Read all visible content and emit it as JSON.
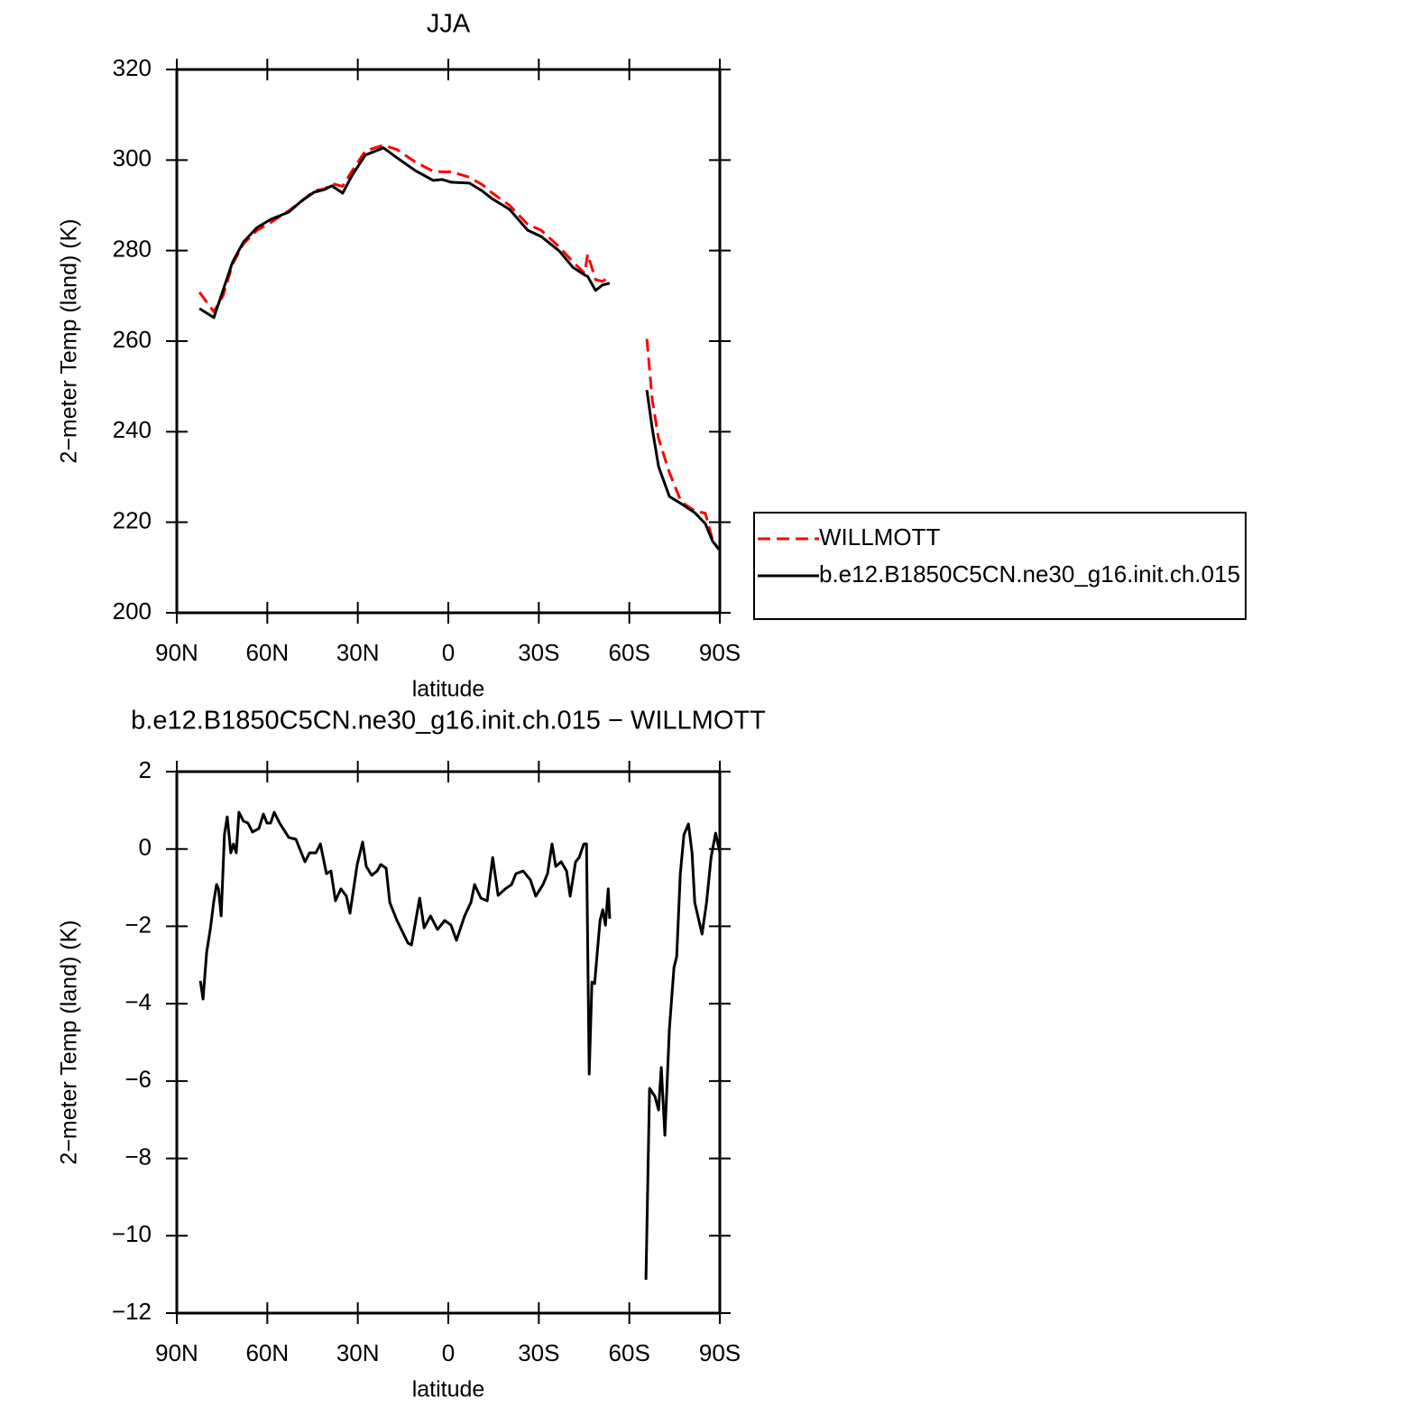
{
  "chart_data": [
    {
      "type": "line",
      "title": "JJA",
      "xlabel": "latitude",
      "ylabel": "2−meter Temp (land) (K)",
      "x": [
        82.5,
        77.7,
        74.7,
        71.5,
        67.9,
        63.4,
        58.9,
        52.9,
        48.4,
        44.5,
        41,
        38.6,
        35,
        32,
        27.5,
        21.5,
        17,
        11,
        5,
        2,
        -1,
        -7,
        -11.4,
        -14.4,
        -20.3,
        -26.3,
        -30.8,
        -36.8,
        -41.3,
        -45.2,
        -46.2,
        -48.8,
        -51.1,
        -53.5,
        -60,
        -65.8,
        -67.6,
        -69.7,
        -73.3,
        -77.2,
        -81.7,
        -85.2,
        -87.6,
        -89.7
      ],
      "series": [
        {
          "name": "WILLMOTT",
          "color": "#ff0000",
          "line_style": "dashed",
          "values": [
            270.8,
            266.5,
            270,
            277,
            281.5,
            284.5,
            286.2,
            288.8,
            291,
            293.2,
            293.6,
            294.8,
            294.2,
            297.5,
            302,
            303.3,
            302.3,
            299.6,
            297.5,
            297.4,
            297.4,
            296.2,
            294.5,
            292.8,
            290,
            285.8,
            284.5,
            280.8,
            277.5,
            275,
            279.2,
            273.6,
            273.2,
            274.2,
            null,
            260.5,
            247,
            238.5,
            231,
            224.5,
            222.5,
            222,
            216,
            214
          ]
        },
        {
          "name": "b.e12.B1850C5CN.ne30_g16.init.ch.015",
          "color": "#000000",
          "line_style": "solid",
          "values": [
            267.2,
            265.2,
            271.2,
            277.5,
            281.9,
            285.1,
            286.9,
            288.5,
            291.1,
            292.9,
            293.5,
            294.3,
            292.7,
            296.5,
            301.1,
            302.7,
            300.5,
            297.7,
            295.5,
            295.7,
            295.1,
            294.9,
            293.1,
            291.5,
            289.1,
            284.5,
            283.1,
            279.9,
            276.3,
            274.6,
            274.3,
            271.2,
            272.4,
            272.8,
            null,
            249.2,
            240.7,
            232.3,
            225.7,
            224.1,
            222.1,
            219.7,
            215.8,
            214
          ]
        }
      ],
      "xlim": [
        90,
        -90
      ],
      "xticks": [
        {
          "value": 90,
          "label": "90N"
        },
        {
          "value": 60,
          "label": "60N"
        },
        {
          "value": 30,
          "label": "30N"
        },
        0,
        {
          "value": -30,
          "label": "30S"
        },
        {
          "value": -60,
          "label": "60S"
        },
        {
          "value": -90,
          "label": "90S"
        }
      ],
      "ylim": [
        200,
        320
      ],
      "yticks": [
        200,
        220,
        240,
        260,
        280,
        300,
        320
      ],
      "legend": "right"
    },
    {
      "type": "line",
      "title": "b.e12.B1850C5CN.ne30_g16.init.ch.015 − WILLMOTT",
      "xlabel": "latitude",
      "ylabel": "2−meter Temp (land) (K)",
      "x": [
        82.2,
        81.3,
        80.1,
        78.9,
        77.7,
        76.8,
        76.2,
        75.3,
        74.2,
        73.3,
        72.1,
        71.2,
        70.3,
        69.4,
        67.9,
        66.4,
        64.9,
        62.8,
        61.3,
        60.1,
        58.9,
        57.7,
        55.9,
        52.9,
        50.5,
        47.5,
        46,
        43.9,
        42.4,
        40.4,
        38.9,
        37.4,
        35.6,
        33.8,
        32.6,
        30.2,
        28.4,
        27.2,
        25.4,
        23.6,
        22.4,
        20.6,
        19.4,
        17,
        13.4,
        12.2,
        9.5,
        8,
        5.9,
        3.6,
        1.2,
        -0.9,
        -2.7,
        -5.4,
        -7.5,
        -8.7,
        -10.8,
        -12.9,
        -14.7,
        -16.5,
        -18.9,
        -21,
        -22.4,
        -24.8,
        -27.2,
        -29,
        -31.4,
        -32.9,
        -34.4,
        -35.6,
        -37.4,
        -39.2,
        -40.4,
        -42.2,
        -43.4,
        -44.9,
        -45.8,
        -46.7,
        -47.6,
        -48.5,
        -50.3,
        -51.2,
        -52.1,
        -53,
        -53.5,
        -60,
        -65.5,
        -66.7,
        -68.5,
        -69.7,
        -70.6,
        -71.8,
        -73.3,
        -74.8,
        -75.7,
        -76.9,
        -78.1,
        -79.6,
        -80.8,
        -81.7,
        -83.2,
        -84.1,
        -85.6,
        -87.1,
        -88.6,
        -90
      ],
      "values": [
        -3.41,
        -3.88,
        -2.67,
        -2.08,
        -1.34,
        -0.92,
        -1.03,
        -1.73,
        0.37,
        0.83,
        -0.1,
        0.13,
        -0.1,
        0.95,
        0.72,
        0.67,
        0.44,
        0.53,
        0.9,
        0.67,
        0.67,
        0.95,
        0.67,
        0.3,
        0.25,
        -0.33,
        -0.1,
        -0.1,
        0.13,
        -0.64,
        -0.57,
        -1.34,
        -1.03,
        -1.22,
        -1.66,
        -0.4,
        0.18,
        -0.45,
        -0.68,
        -0.57,
        -0.4,
        -0.5,
        -1.38,
        -1.85,
        -2.43,
        -2.48,
        -1.27,
        -2.04,
        -1.73,
        -2.08,
        -1.85,
        -1.97,
        -2.36,
        -1.73,
        -1.38,
        -0.92,
        -1.27,
        -1.34,
        -0.22,
        -1.2,
        -1.03,
        -0.92,
        -0.64,
        -0.57,
        -0.8,
        -1.22,
        -0.92,
        -0.64,
        0.13,
        -0.45,
        -0.33,
        -0.57,
        -1.22,
        -0.33,
        -0.22,
        0.13,
        0.13,
        -5.82,
        -3.44,
        -3.48,
        -1.85,
        -1.57,
        -1.97,
        -1.03,
        -1.8,
        null,
        -11.14,
        -6.19,
        -6.4,
        -6.75,
        -5.65,
        -7.4,
        -4.65,
        -3.06,
        -2.78,
        -0.64,
        0.37,
        0.65,
        -0.1,
        -1.38,
        -1.9,
        -2.2,
        -1.38,
        -0.22,
        0.41,
        -0.1
      ],
      "color": "#000000",
      "xlim": [
        90,
        -90
      ],
      "xticks": [
        {
          "value": 90,
          "label": "90N"
        },
        {
          "value": 60,
          "label": "60N"
        },
        {
          "value": 30,
          "label": "30N"
        },
        0,
        {
          "value": -30,
          "label": "30S"
        },
        {
          "value": -60,
          "label": "60S"
        },
        {
          "value": -90,
          "label": "90S"
        }
      ],
      "ylim": [
        -12,
        2
      ],
      "yticks": [
        {
          "value": -12,
          "label": "−12"
        },
        {
          "value": -10,
          "label": "−10"
        },
        {
          "value": -8,
          "label": "−8"
        },
        {
          "value": -6,
          "label": "−6"
        },
        {
          "value": -4,
          "label": "−4"
        },
        {
          "value": -2,
          "label": "−2"
        },
        0,
        2
      ]
    }
  ]
}
